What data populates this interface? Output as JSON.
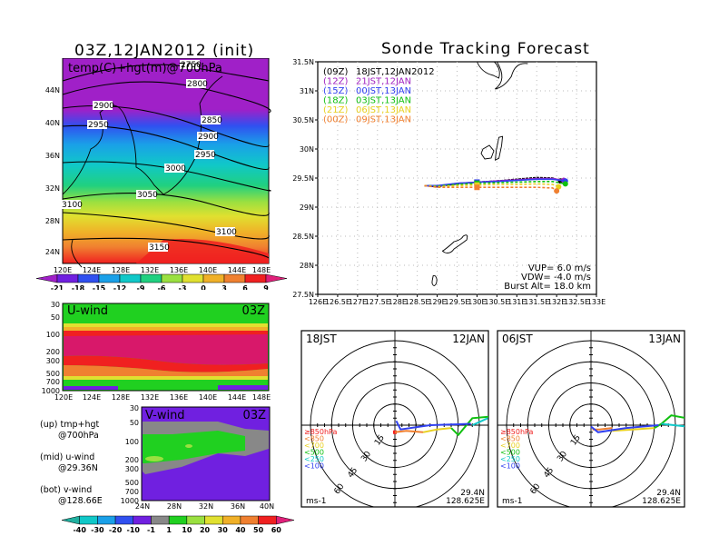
{
  "left_top": {
    "title": "03Z,12JAN2012 (init)",
    "field_label": "temp(C)+hgt(m)@700hPa",
    "lat_ticks": [
      "44N",
      "40N",
      "36N",
      "32N",
      "28N",
      "24N"
    ],
    "lon_ticks": [
      "120E",
      "124E",
      "128E",
      "132E",
      "136E",
      "140E",
      "144E",
      "148E"
    ],
    "contour_labels": [
      "2750",
      "2800",
      "2850",
      "2900",
      "2900",
      "2950",
      "2950",
      "3000",
      "3050",
      "3100",
      "3100",
      "3150"
    ],
    "colorbar": {
      "labels": [
        "-21",
        "-18",
        "-15",
        "-12",
        "-9",
        "-6",
        "-3",
        "0",
        "3",
        "6",
        "9"
      ],
      "colors": [
        "#a020c8",
        "#7020e0",
        "#3050f0",
        "#1aa0e8",
        "#10c8c8",
        "#20d080",
        "#9ae040",
        "#e0e030",
        "#f0b028",
        "#f08030",
        "#f02020",
        "#e0207a"
      ]
    }
  },
  "left_mid": {
    "label": "U-wind",
    "time": "03Z",
    "y_ticks": [
      "30",
      "50",
      "100",
      "200",
      "300",
      "500",
      "700",
      "1000"
    ],
    "x_ticks": [
      "120E",
      "124E",
      "128E",
      "132E",
      "136E",
      "140E",
      "144E",
      "148E"
    ]
  },
  "left_bot": {
    "label": "V-wind",
    "time": "03Z",
    "y_ticks": [
      "30",
      "50",
      "100",
      "200",
      "300",
      "500",
      "700",
      "1000"
    ],
    "x_ticks": [
      "24N",
      "28N",
      "32N",
      "36N",
      "40N"
    ],
    "colorbar": {
      "labels": [
        "-40",
        "-30",
        "-20",
        "-10",
        "-1",
        "1",
        "10",
        "20",
        "30",
        "40",
        "50",
        "60"
      ],
      "colors": [
        "#20b0a0",
        "#10c8c8",
        "#1aa0e8",
        "#3050f0",
        "#7020e0",
        "#888888",
        "#20d020",
        "#9ae040",
        "#e0e030",
        "#f0b028",
        "#f08030",
        "#f02020",
        "#e0207a"
      ]
    }
  },
  "notes": [
    {
      "line1": "(up) tmp+hgt",
      "line2": "@700hPa"
    },
    {
      "line1": "(mid) u-wind",
      "line2": "@29.36N"
    },
    {
      "line1": "(bot) v-wind",
      "line2": "@128.66E"
    }
  ],
  "chart_data": [
    {
      "type": "line",
      "title": "Sonde Tracking Forecast",
      "xlabel": "",
      "ylabel": "",
      "xlim": [
        126,
        133
      ],
      "ylim": [
        27.5,
        31.5
      ],
      "x_ticks": [
        "126E",
        "126.5E",
        "127E",
        "127.5E",
        "128E",
        "128.5E",
        "129E",
        "129.5E",
        "130E",
        "130.5E",
        "131E",
        "131.5E",
        "132E",
        "132.5E",
        "133E"
      ],
      "y_ticks": [
        "31.5N",
        "31N",
        "30.5N",
        "30N",
        "29.5N",
        "29N",
        "28.5N",
        "28N",
        "27.5N"
      ],
      "grid": true,
      "legend_position": "top-left",
      "series": [
        {
          "name": "(09Z) 18JST,12JAN2012",
          "code": "(09Z)",
          "label": "18JST,12JAN2012",
          "color": "#000000",
          "points": [
            [
              128.68,
              29.37
            ],
            [
              129,
              29.35
            ],
            [
              129.5,
              29.4
            ],
            [
              130,
              29.43
            ],
            [
              130.5,
              29.45
            ],
            [
              131,
              29.48
            ],
            [
              131.5,
              29.51
            ],
            [
              131.9,
              29.5
            ],
            [
              132.1,
              29.45
            ]
          ]
        },
        {
          "name": "(12Z) 21JST,12JAN",
          "code": "(12Z)",
          "label": "21JST,12JAN",
          "color": "#a020c0",
          "points": [
            [
              128.68,
              29.37
            ],
            [
              129,
              29.36
            ],
            [
              129.5,
              29.41
            ],
            [
              130,
              29.43
            ],
            [
              130.5,
              29.45
            ],
            [
              131,
              29.47
            ],
            [
              131.5,
              29.49
            ],
            [
              131.9,
              29.49
            ],
            [
              132.18,
              29.46
            ]
          ]
        },
        {
          "name": "(15Z) 00JST,13JAN",
          "code": "(15Z)",
          "label": "00JST,13JAN",
          "color": "#3040f0",
          "points": [
            [
              128.68,
              29.37
            ],
            [
              129,
              29.37
            ],
            [
              129.5,
              29.41
            ],
            [
              130,
              29.43
            ],
            [
              130.5,
              29.44
            ],
            [
              131,
              29.46
            ],
            [
              131.5,
              29.48
            ],
            [
              131.9,
              29.48
            ],
            [
              132.22,
              29.45
            ]
          ]
        },
        {
          "name": "(18Z) 03JST,13JAN",
          "code": "(18Z)",
          "label": "03JST,13JAN",
          "color": "#10c010",
          "points": [
            [
              128.68,
              29.37
            ],
            [
              129,
              29.36
            ],
            [
              129.5,
              29.39
            ],
            [
              130,
              29.41
            ],
            [
              130.5,
              29.42
            ],
            [
              131,
              29.43
            ],
            [
              131.5,
              29.44
            ],
            [
              131.9,
              29.44
            ],
            [
              132.22,
              29.4
            ]
          ]
        },
        {
          "name": "(21Z) 06JST,13JAN",
          "code": "(21Z)",
          "label": "06JST,13JAN",
          "color": "#e8d020",
          "points": [
            [
              128.68,
              29.37
            ],
            [
              129,
              29.35
            ],
            [
              129.5,
              29.37
            ],
            [
              130,
              29.38
            ],
            [
              130.5,
              29.39
            ],
            [
              131,
              29.39
            ],
            [
              131.5,
              29.4
            ],
            [
              131.9,
              29.39
            ],
            [
              132.05,
              29.35
            ]
          ]
        },
        {
          "name": "(00Z) 09JST,13JAN",
          "code": "(00Z)",
          "label": "09JST,13JAN",
          "color": "#f08030",
          "points": [
            [
              128.68,
              29.37
            ],
            [
              129,
              29.34
            ],
            [
              129.5,
              29.34
            ],
            [
              130,
              29.34
            ],
            [
              130.5,
              29.34
            ],
            [
              131,
              29.34
            ],
            [
              131.5,
              29.34
            ],
            [
              131.9,
              29.33
            ],
            [
              132.0,
              29.28
            ]
          ]
        }
      ],
      "annotations": [
        "VUP=  6.0  m/s",
        "VDW= -4.0  m/s",
        "Burst Alt= 18.0  km"
      ]
    },
    {
      "type": "line",
      "title": "hodograph",
      "time_label": "18JST",
      "date_label": "12JAN",
      "ring_labels": [
        "15",
        "30",
        "45",
        "60"
      ],
      "units": "ms-1",
      "location": [
        "29.4N",
        "128.625E"
      ],
      "legend": [
        "≥850hPa",
        "<850",
        "<700",
        "<500",
        "<250",
        "<100"
      ],
      "legend_colors": [
        "#f02020",
        "#f08030",
        "#e8d020",
        "#10c010",
        "#10c8c8",
        "#3040f0"
      ],
      "segments": [
        {
          "layer": "≥850hPa",
          "color": "#f02020",
          "points": [
            [
              0,
              -5
            ],
            [
              0,
              -5
            ]
          ]
        },
        {
          "layer": "<850",
          "color": "#f08030",
          "points": [
            [
              0,
              -5
            ],
            [
              8,
              -4
            ],
            [
              20,
              -5
            ]
          ]
        },
        {
          "layer": "<700",
          "color": "#e8d020",
          "points": [
            [
              20,
              -5
            ],
            [
              30,
              -3
            ],
            [
              40,
              -2
            ]
          ]
        },
        {
          "layer": "<500",
          "color": "#10c010",
          "points": [
            [
              40,
              -2
            ],
            [
              45,
              -7
            ],
            [
              55,
              5
            ],
            [
              67,
              6
            ]
          ]
        },
        {
          "layer": "<250",
          "color": "#10c8c8",
          "points": [
            [
              55,
              0
            ],
            [
              66,
              5
            ]
          ]
        },
        {
          "layer": "<100",
          "color": "#3040f0",
          "points": [
            [
              1,
              3
            ],
            [
              4,
              -3
            ],
            [
              25,
              0
            ],
            [
              54,
              1
            ]
          ]
        }
      ]
    },
    {
      "type": "line",
      "title": "hodograph",
      "time_label": "06JST",
      "date_label": "13JAN",
      "ring_labels": [
        "15",
        "30",
        "45",
        "60"
      ],
      "units": "ms-1",
      "location": [
        "29.4N",
        "128.625E"
      ],
      "legend": [
        "≥850hPa",
        "<850",
        "<700",
        "<500",
        "<250",
        "<100"
      ],
      "legend_colors": [
        "#f02020",
        "#f08030",
        "#e8d020",
        "#10c010",
        "#10c8c8",
        "#3040f0"
      ],
      "segments": [
        {
          "layer": "<850",
          "color": "#f08030",
          "points": [
            [
              1,
              -3
            ],
            [
              6,
              -3
            ],
            [
              15,
              -2
            ]
          ]
        },
        {
          "layer": "<700",
          "color": "#e8d020",
          "points": [
            [
              15,
              -4
            ],
            [
              30,
              -3
            ],
            [
              45,
              -2
            ]
          ]
        },
        {
          "layer": "<500",
          "color": "#10c010",
          "points": [
            [
              45,
              -2
            ],
            [
              50,
              1
            ],
            [
              57,
              7
            ],
            [
              68,
              5
            ]
          ]
        },
        {
          "layer": "<250",
          "color": "#10c8c8",
          "points": [
            [
              50,
              1
            ],
            [
              68,
              -1
            ]
          ]
        },
        {
          "layer": "<100",
          "color": "#3040f0",
          "points": [
            [
              0,
              -1
            ],
            [
              5,
              -5
            ],
            [
              25,
              -2
            ],
            [
              48,
              0
            ]
          ]
        }
      ]
    }
  ]
}
